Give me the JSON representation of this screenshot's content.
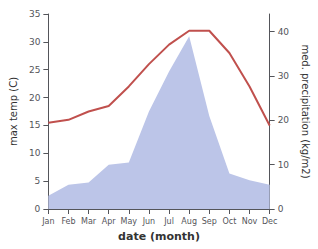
{
  "chart_data": {
    "type": "line",
    "xlabel": "date (month)",
    "ylabel": "max temp (C)",
    "y2label": "med. precipitation (kg/m2)",
    "categories": [
      "Jan",
      "Feb",
      "Mar",
      "Apr",
      "May",
      "Jun",
      "Jul",
      "Aug",
      "Sep",
      "Oct",
      "Nov",
      "Dec"
    ],
    "series": [
      {
        "type": "area",
        "axis": "y2",
        "color": "#bcc5e8",
        "values": [
          3.0,
          5.5,
          6.0,
          10.0,
          10.5,
          22.0,
          31.0,
          39.0,
          21.0,
          8.0,
          6.5,
          5.5
        ]
      },
      {
        "type": "line",
        "color": "#c0504d",
        "values": [
          15.5,
          16.0,
          17.5,
          18.5,
          22.0,
          26.0,
          29.5,
          32.0,
          32.0,
          28.0,
          22.0,
          15.0
        ]
      }
    ],
    "ylim": [
      0,
      35
    ],
    "yticks": [
      0,
      5,
      10,
      15,
      20,
      25,
      30,
      35
    ],
    "y2lim": [
      0,
      44
    ],
    "y2ticks": [
      0,
      10,
      20,
      30,
      40
    ],
    "grid": false
  }
}
